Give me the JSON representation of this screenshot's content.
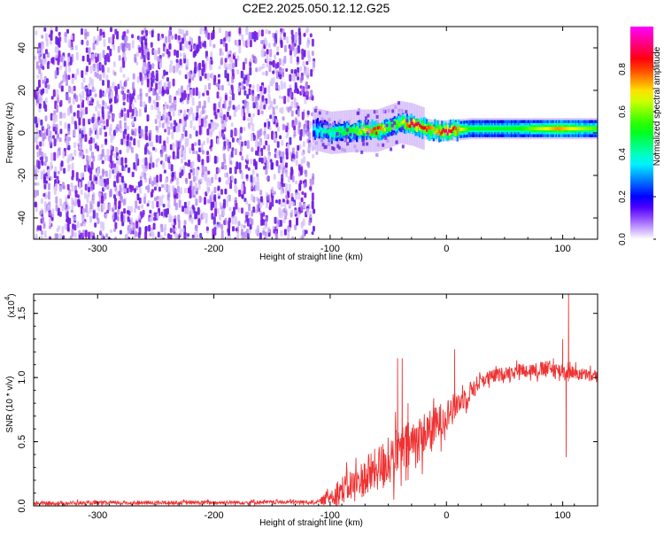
{
  "title": "C2E2.2025.050.12.12.G25",
  "chart_data": [
    {
      "type": "heatmap",
      "xlabel": "Height of straight line (km)",
      "ylabel": "Frequency (Hz)",
      "xlim": [
        -355,
        130
      ],
      "ylim": [
        -50,
        50
      ],
      "x_ticks": [
        -300,
        -200,
        -100,
        0,
        100
      ],
      "y_ticks": [
        -40,
        -20,
        0,
        20,
        40
      ],
      "colorbar": {
        "label": "Normalized spectral amplitude",
        "range": [
          0,
          1
        ],
        "ticks": [
          0.0,
          0.2,
          0.4,
          0.6,
          0.8
        ]
      },
      "noise_region": {
        "x_range": [
          -355,
          -115
        ],
        "amplitude": 0.15
      },
      "ridge": [
        {
          "x": -115,
          "freq": 2,
          "amp": 0.35
        },
        {
          "x": -100,
          "freq": 0,
          "amp": 0.45
        },
        {
          "x": -80,
          "freq": 1,
          "amp": 0.55
        },
        {
          "x": -60,
          "freq": 1,
          "amp": 0.85
        },
        {
          "x": -50,
          "freq": 3,
          "amp": 0.55
        },
        {
          "x": -40,
          "freq": 5,
          "amp": 0.6
        },
        {
          "x": -30,
          "freq": 4,
          "amp": 0.9
        },
        {
          "x": -20,
          "freq": 2,
          "amp": 0.85
        },
        {
          "x": -10,
          "freq": 1,
          "amp": 0.7
        },
        {
          "x": 0,
          "freq": 1,
          "amp": 0.95
        },
        {
          "x": 20,
          "freq": 2,
          "amp": 0.5
        },
        {
          "x": 60,
          "freq": 2,
          "amp": 0.5
        },
        {
          "x": 95,
          "freq": 2,
          "amp": 0.75
        },
        {
          "x": 130,
          "freq": 2,
          "amp": 0.55
        }
      ]
    },
    {
      "type": "line",
      "xlabel": "Height of straight line (km)",
      "ylabel": "SNR (10 * v/v)",
      "multiplier_label": "(x10",
      "multiplier_exp": "4",
      "multiplier_close": ")",
      "xlim": [
        -355,
        130
      ],
      "ylim": [
        0,
        1.65
      ],
      "x_ticks": [
        -300,
        -200,
        -100,
        0,
        100
      ],
      "y_ticks": [
        0.0,
        0.5,
        1.0,
        1.5
      ],
      "series": [
        {
          "color": "#ee3333",
          "envelope": [
            {
              "x": -355,
              "mean": 0.02,
              "spread": 0.015
            },
            {
              "x": -110,
              "mean": 0.03,
              "spread": 0.015
            },
            {
              "x": -95,
              "mean": 0.1,
              "spread": 0.1
            },
            {
              "x": -70,
              "mean": 0.22,
              "spread": 0.15
            },
            {
              "x": -50,
              "mean": 0.35,
              "spread": 0.2
            },
            {
              "x": -30,
              "mean": 0.48,
              "spread": 0.2
            },
            {
              "x": -10,
              "mean": 0.62,
              "spread": 0.15
            },
            {
              "x": 10,
              "mean": 0.8,
              "spread": 0.1
            },
            {
              "x": 30,
              "mean": 0.98,
              "spread": 0.06
            },
            {
              "x": 60,
              "mean": 1.06,
              "spread": 0.05
            },
            {
              "x": 90,
              "mean": 1.06,
              "spread": 0.07
            },
            {
              "x": 110,
              "mean": 1.04,
              "spread": 0.05
            },
            {
              "x": 130,
              "mean": 1.0,
              "spread": 0.05
            }
          ],
          "spikes": [
            {
              "x": -42,
              "y": 1.15
            },
            {
              "x": -38,
              "y": 1.15
            },
            {
              "x": -33,
              "y": 0.8
            },
            {
              "x": 7,
              "y": 1.22
            },
            {
              "x": 100,
              "y": 1.3
            },
            {
              "x": 103,
              "y": 0.38
            },
            {
              "x": 105,
              "y": 1.65
            },
            {
              "x": 92,
              "y": 1.15
            }
          ]
        }
      ]
    }
  ]
}
